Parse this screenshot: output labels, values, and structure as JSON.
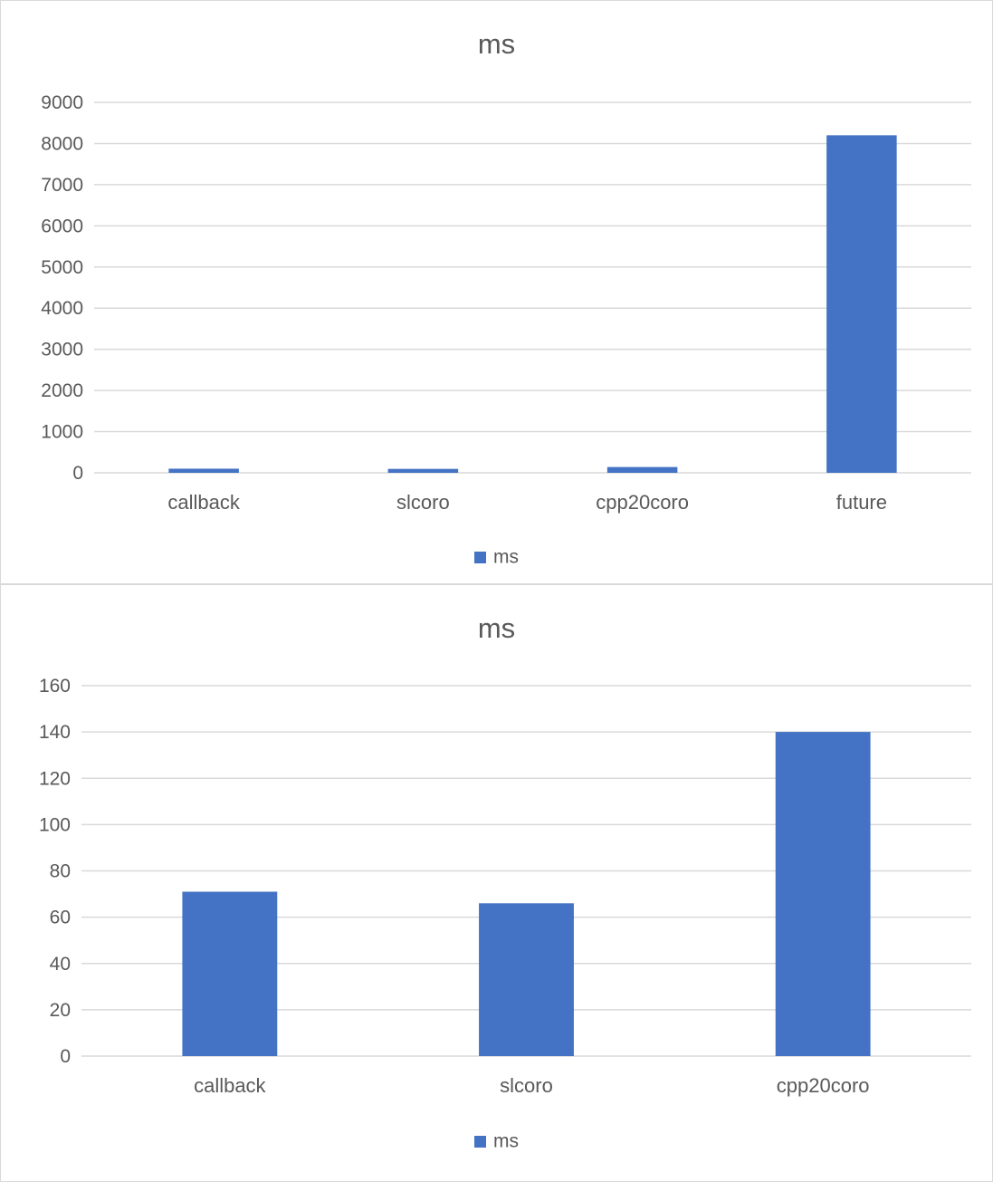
{
  "chart_data": [
    {
      "type": "bar",
      "title": "ms",
      "categories": [
        "callback",
        "slcoro",
        "cpp20coro",
        "future"
      ],
      "series": [
        {
          "name": "ms",
          "values": [
            100,
            95,
            140,
            8200
          ]
        }
      ],
      "ylim": [
        0,
        9000
      ],
      "yticks": [
        0,
        1000,
        2000,
        3000,
        4000,
        5000,
        6000,
        7000,
        8000,
        9000
      ],
      "grid": true,
      "legend": "bottom",
      "color": "#4472c4"
    },
    {
      "type": "bar",
      "title": "ms",
      "categories": [
        "callback",
        "slcoro",
        "cpp20coro"
      ],
      "series": [
        {
          "name": "ms",
          "values": [
            71,
            66,
            140
          ]
        }
      ],
      "ylim": [
        0,
        160
      ],
      "yticks": [
        0,
        20,
        40,
        60,
        80,
        100,
        120,
        140,
        160
      ],
      "grid": true,
      "legend": "bottom",
      "color": "#4472c4"
    }
  ]
}
